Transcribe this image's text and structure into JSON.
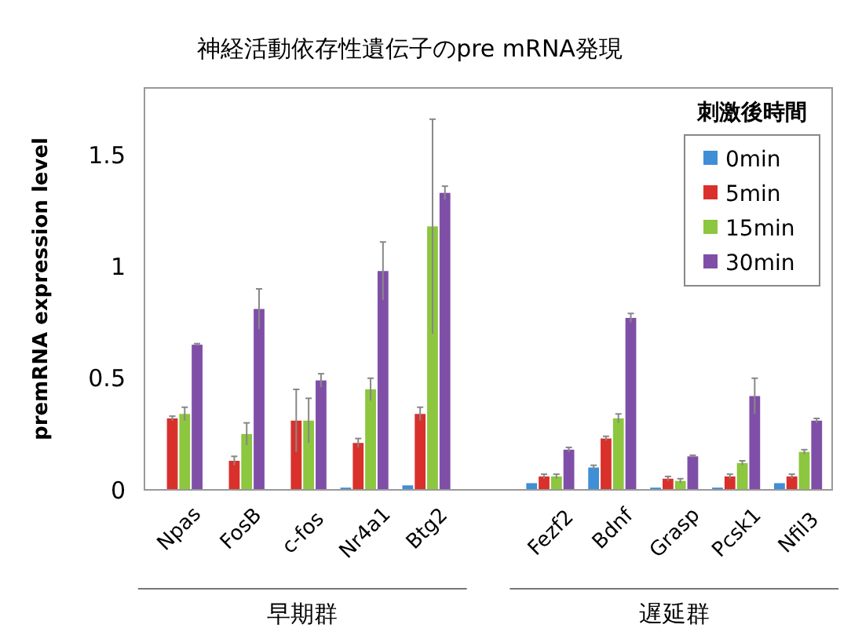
{
  "chart_data": {
    "type": "bar",
    "title": "神経活動依存性遺伝子のpre mRNA発現",
    "ylabel": "premRNA expression level",
    "legend_title": "刺激後時間",
    "legend": "top right",
    "grid": false,
    "categories": [
      "Npas",
      "FosB",
      "c-fos",
      "Nr4a1",
      "Btg2",
      null,
      "Fezf2",
      "Bdnf",
      "Grasp",
      "Pcsk1",
      "Nfil3"
    ],
    "ylim": [
      0,
      1.8
    ],
    "yticks": [
      0,
      0.5,
      1,
      {
        "value": 1.5,
        "label": "1.5"
      }
    ],
    "series": [
      {
        "name": "0min",
        "color": "#3f8fd6",
        "values": [
          0,
          0,
          0.002,
          0.01,
          0.02,
          null,
          0.03,
          0.1,
          0.01,
          0.01,
          0.03
        ],
        "errors": [
          null,
          null,
          null,
          null,
          null,
          null,
          null,
          0.01,
          null,
          null,
          null
        ]
      },
      {
        "name": "5min",
        "color": "#d9302c",
        "values": [
          0.32,
          0.13,
          0.31,
          0.21,
          0.34,
          null,
          0.06,
          0.23,
          0.05,
          0.06,
          0.06
        ],
        "errors": [
          0.01,
          0.02,
          0.14,
          0.02,
          0.03,
          null,
          0.01,
          0.01,
          0.01,
          0.01,
          0.01
        ]
      },
      {
        "name": "15min",
        "color": "#8dc63f",
        "values": [
          0.34,
          0.25,
          0.31,
          0.45,
          1.18,
          null,
          0.06,
          0.32,
          0.04,
          0.12,
          0.17
        ],
        "errors": [
          0.03,
          0.05,
          0.1,
          0.05,
          0.48,
          null,
          0.01,
          0.02,
          0.01,
          0.01,
          0.01
        ]
      },
      {
        "name": "30min",
        "color": "#7f4fa8",
        "values": [
          0.65,
          0.81,
          0.49,
          0.98,
          1.33,
          null,
          0.18,
          0.77,
          0.15,
          0.42,
          0.31
        ],
        "errors": [
          0.005,
          0.09,
          0.03,
          0.13,
          0.03,
          null,
          0.01,
          0.02,
          0.005,
          0.08,
          0.01
        ]
      }
    ],
    "annotations": [
      "早期群",
      "遅延群"
    ]
  }
}
